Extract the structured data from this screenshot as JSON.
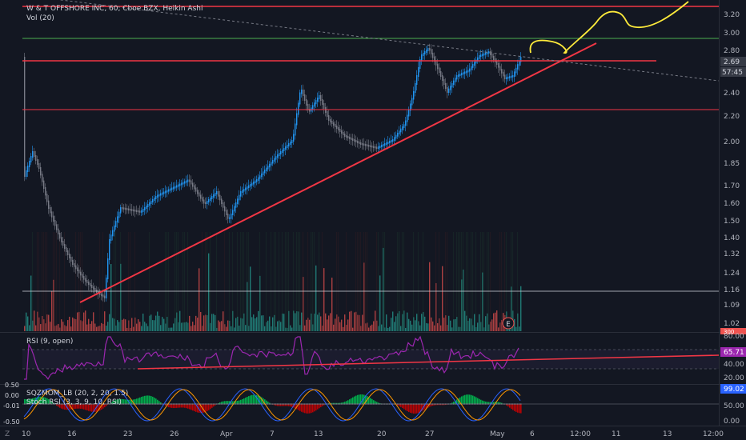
{
  "header": {
    "symbol_line": "W & T OFFSHORE INC, 60, Cboe BZX, Heikin Ashi",
    "volume_label": "Vol (20)"
  },
  "price_axis": {
    "ticks": [
      "3.20",
      "3.00",
      "2.80",
      "2.60",
      "2.40",
      "2.20",
      "2.00",
      "1.85",
      "1.70",
      "1.60",
      "1.50",
      "1.40",
      "1.32",
      "1.24",
      "1.16",
      "1.09",
      "1.02"
    ],
    "current_price": "2.69",
    "countdown": "57:45",
    "volume_badge": "300"
  },
  "rsi_pane": {
    "label": "RSI (9, open)",
    "ticks": [
      "80.00",
      "40.00",
      "20.00"
    ],
    "current_value": "65.71"
  },
  "osc_pane": {
    "label1": "SQZMOM_LB (20, 2, 20, 1.5)",
    "label2": "Stoch RSI (3, 3, 9, 10, RSI)",
    "left_ticks": [
      "0.50",
      "0.00",
      "-0.01",
      "-0.50"
    ],
    "right_ticks": [
      "50.00",
      "0.00"
    ],
    "current_value": "99.02"
  },
  "time_axis": {
    "labels": [
      "10",
      "16",
      "23",
      "26",
      "Apr",
      "7",
      "13",
      "20",
      "27",
      "May",
      "6",
      "12:00",
      "11",
      "13",
      "12:00"
    ]
  },
  "earnings_marker": "E",
  "colors": {
    "background": "#131722",
    "up_candle": "#2196f3",
    "down_candle": "#787b86",
    "drawing_red": "#f23645",
    "drawing_green": "#4caf50",
    "projection_yellow": "#ffeb3b",
    "rsi_line": "#9c27b0",
    "volume_up": "#26a69a",
    "volume_down": "#ef5350"
  },
  "chart_data": {
    "type": "candlestick",
    "price_ylim": [
      1.0,
      3.3
    ],
    "horizontal_levels": [
      3.28,
      2.93,
      2.68,
      2.25,
      1.16
    ],
    "trendline": {
      "from": {
        "x": "16",
        "price": 1.1
      },
      "to": {
        "x": "May",
        "price": 2.9
      }
    },
    "rsi_overbought": 80,
    "rsi_oversold": 20,
    "rsi_last": 65.71
  }
}
